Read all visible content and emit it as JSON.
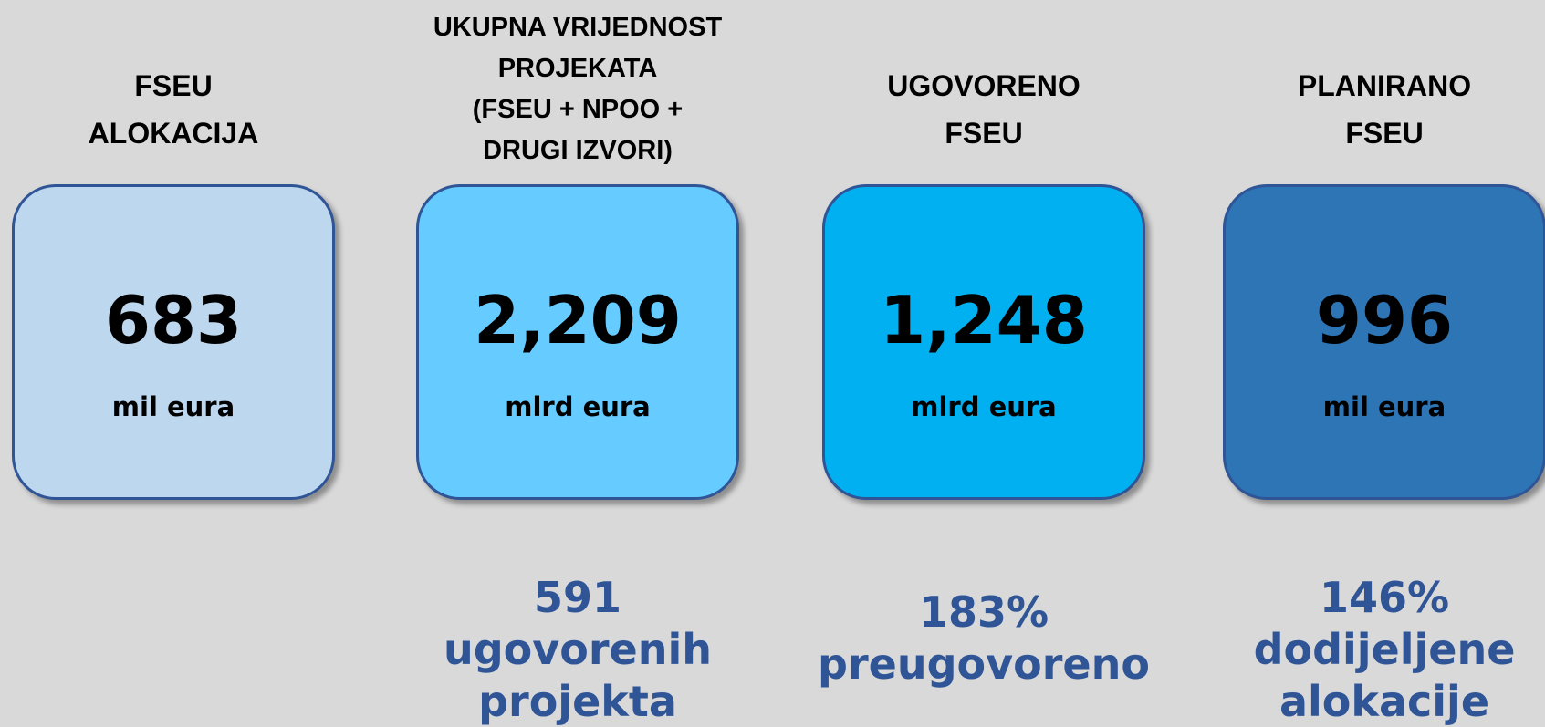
{
  "cards": [
    {
      "title": [
        "FSEU",
        "ALOKACIJA"
      ],
      "value": "683",
      "unit": "mil eura",
      "color": "#bdd7ee",
      "note": []
    },
    {
      "title": [
        "UKUPNA VRIJEDNOST",
        "PROJEKATA",
        "(FSEU + NPOO +",
        "DRUGI IZVORI)"
      ],
      "value": "2,209",
      "unit": "mlrd eura",
      "color": "#66ccff",
      "note": [
        "591",
        "ugovorenih",
        "projekta"
      ]
    },
    {
      "title": [
        "UGOVORENO",
        "FSEU"
      ],
      "value": "1,248",
      "unit": "mlrd eura",
      "color": "#00b0f0",
      "note": [
        "183%",
        "preugovoreno"
      ]
    },
    {
      "title": [
        "PLANIRANO",
        "FSEU"
      ],
      "value": "996",
      "unit": "mil eura",
      "color": "#2e75b6",
      "note": [
        "146%",
        "dodijeljene",
        "alokacije"
      ]
    }
  ]
}
